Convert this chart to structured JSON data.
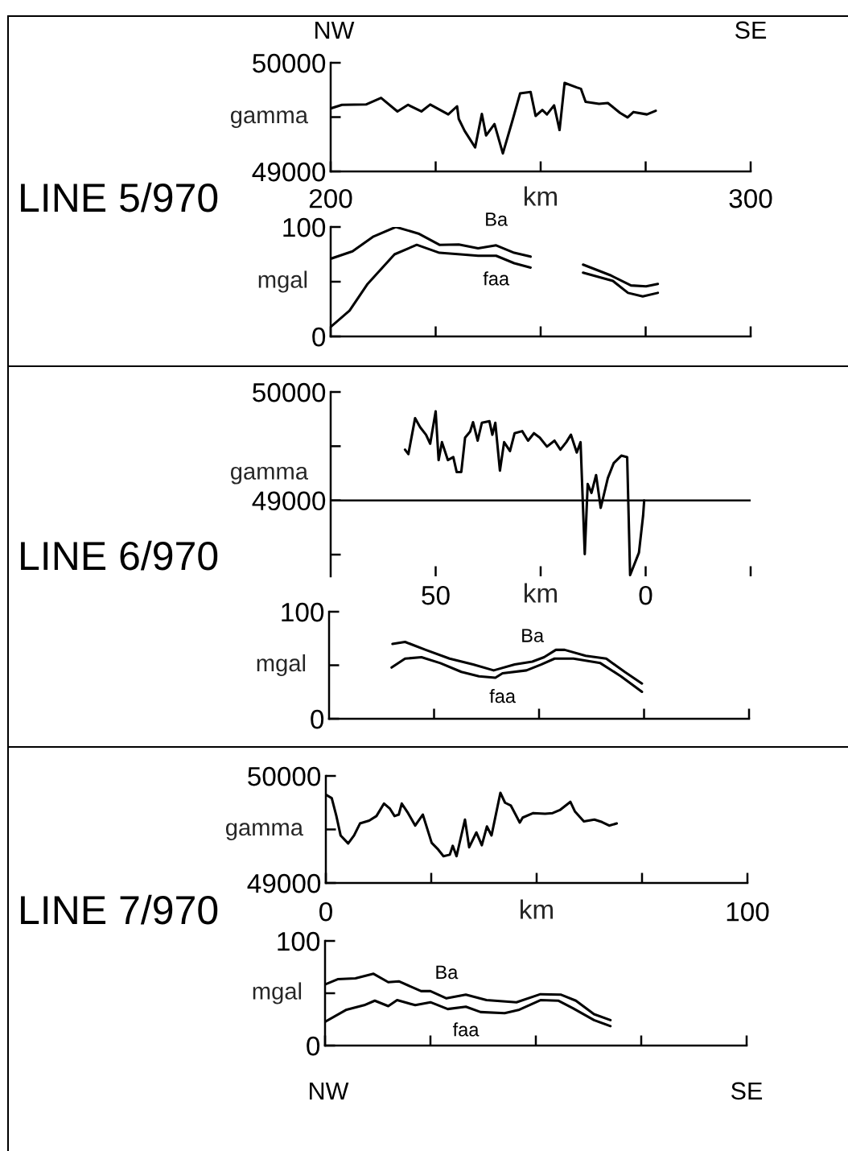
{
  "chart_data": [
    {
      "type": "line",
      "title": "LINE 5/970",
      "xlabel": "km",
      "ylabel": "gamma",
      "annotations": [
        "NW",
        "SE"
      ],
      "xlim": [
        200,
        300
      ],
      "xticks": [
        200,
        {
          "value": 225,
          "label": null
        },
        {
          "value": 250,
          "label": null
        },
        {
          "value": 275,
          "label": null
        },
        300
      ],
      "ylim": [
        49000,
        50000
      ],
      "yticks": [
        49000,
        {
          "value": 49500,
          "label": null
        },
        50000
      ],
      "grid": false,
      "legend": false,
      "series": [
        {
          "color": "#000000",
          "x": [
            200,
            202.7,
            208.4,
            212,
            215.9,
            218.4,
            221.6,
            223.7,
            228,
            230.1,
            230.5,
            231.9,
            234.4,
            236,
            237,
            239,
            241,
            243.3,
            245.1,
            247.6,
            248.8,
            250.4,
            251.5,
            253.2,
            254.5,
            255.7,
            258.6,
            259.6,
            260.7,
            263.9,
            266,
            268.9,
            270.7,
            272.1,
            275.3,
            277.4
          ],
          "values": [
            49580,
            49613,
            49616,
            49677,
            49552,
            49613,
            49552,
            49616,
            49525,
            49600,
            49483,
            49373,
            49221,
            49530,
            49331,
            49436,
            49166,
            49470,
            49718,
            49732,
            49511,
            49566,
            49525,
            49608,
            49381,
            49815,
            49773,
            49760,
            49641,
            49622,
            49630,
            49539,
            49497,
            49547,
            49525,
            49558
          ]
        }
      ]
    },
    {
      "type": "line",
      "ylabel": "mgal",
      "xlim": [
        200,
        300
      ],
      "xticks": [
        200,
        225,
        250,
        275,
        300
      ],
      "ylim": [
        0,
        100
      ],
      "yticks": [
        0,
        {
          "value": 50,
          "label": null
        },
        100
      ],
      "tick_labels": "y",
      "grid": false,
      "legend": false,
      "series": [
        {
          "name": "Ba",
          "color": "#000000",
          "x": [
            200,
            205.2,
            210.2,
            215.5,
            220.9,
            225.9,
            230.5,
            235.1,
            239.4,
            243.7,
            247.6,
            254,
            260.1,
            266.5,
            271.5,
            275.1,
            277.9
          ],
          "values": [
            71,
            77.8,
            91.3,
            100,
            94,
            83.7,
            84,
            80.5,
            83.2,
            76.4,
            72.9,
            null,
            65.6,
            56.1,
            46.6,
            45.8,
            48
          ]
        },
        {
          "name": "faa",
          "color": "#000000",
          "x": [
            200,
            204.5,
            208.8,
            215.2,
            220.5,
            225.9,
            230.9,
            235.1,
            239.4,
            243.7,
            247.6,
            254,
            260.1,
            267.2,
            270.8,
            274.3,
            277.9
          ],
          "values": [
            8.7,
            23.6,
            48,
            75,
            83.7,
            76.4,
            75,
            73.7,
            73.7,
            66.9,
            62.9,
            null,
            58.3,
            50.7,
            39.8,
            36.6,
            39.8
          ]
        }
      ]
    },
    {
      "type": "line",
      "title": "LINE 6/970",
      "xlabel": "km",
      "ylabel": "gamma",
      "xlim": [
        75,
        -25
      ],
      "xticks": [
        50,
        {
          "value": 25,
          "label": null
        },
        0,
        {
          "value": -25,
          "label": null
        }
      ],
      "ylim": [
        48300,
        50000
      ],
      "yticks": [
        {
          "value": 48500,
          "label": null
        },
        49000,
        {
          "value": 49500,
          "label": null
        },
        50000
      ],
      "ref_lines": [
        {
          "axis": "y",
          "value": 49000
        }
      ],
      "grid": false,
      "legend": false,
      "series": [
        {
          "color": "#000000",
          "x": [
            57.3,
            56.5,
            54.9,
            53.7,
            52.3,
            51.3,
            50,
            49.3,
            48.5,
            47.1,
            45.8,
            45,
            43.9,
            43,
            41.8,
            41.1,
            40,
            39,
            37.2,
            36.5,
            35.8,
            34.7,
            33.7,
            32.3,
            31.2,
            29.4,
            28,
            26.6,
            25.2,
            23.5,
            21.7,
            20.3,
            18.9,
            17.8,
            16.4,
            15.5,
            14.5,
            13.8,
            12.9,
            11.8,
            10.7,
            9,
            7.6,
            5.8,
            4.4,
            3.7,
            1.6,
            0.6,
            0.35
          ],
          "values": [
            49468,
            49427,
            49758,
            49675,
            49606,
            49523,
            49821,
            49372,
            49537,
            49372,
            49399,
            49262,
            49262,
            49578,
            49634,
            49722,
            49551,
            49716,
            49730,
            49606,
            49716,
            49275,
            49537,
            49455,
            49620,
            49639,
            49551,
            49620,
            49579,
            49496,
            49551,
            49468,
            49537,
            49606,
            49441,
            49537,
            48504,
            49152,
            49069,
            49234,
            48931,
            49207,
            49344,
            49413,
            49399,
            48311,
            48518,
            48862,
            49000
          ]
        }
      ]
    },
    {
      "type": "line",
      "ylabel": "mgal",
      "xlim": [
        75,
        -25
      ],
      "xticks": [
        50,
        25,
        0,
        -25
      ],
      "ylim": [
        0,
        100
      ],
      "yticks": [
        0,
        {
          "value": 50,
          "label": null
        },
        100
      ],
      "tick_labels": "y",
      "grid": false,
      "legend": false,
      "series": [
        {
          "name": "Ba",
          "color": "#000000",
          "x": [
            59.9,
            56.9,
            52,
            46.3,
            40.7,
            35.8,
            30.8,
            26.6,
            23.8,
            21,
            18.9,
            13.9,
            9,
            4.6,
            0.5
          ],
          "values": [
            69.9,
            71.8,
            64.4,
            56.2,
            50.7,
            45.2,
            50.7,
            53.4,
            57.5,
            64.4,
            64.4,
            58.9,
            56.2,
            43.8,
            32.9
          ]
        },
        {
          "name": "faa",
          "color": "#000000",
          "x": [
            60.1,
            56.9,
            53,
            48.5,
            43.5,
            39.3,
            35.4,
            33.7,
            28,
            24.5,
            21.3,
            16.8,
            10.4,
            5.5,
            0.5
          ],
          "values": [
            47.9,
            56.2,
            57.5,
            52,
            43.8,
            39.7,
            38.4,
            42.5,
            45.2,
            50.7,
            56.2,
            56.2,
            52,
            39.7,
            25.2
          ]
        }
      ]
    },
    {
      "type": "line",
      "title": "LINE 7/970",
      "xlabel": "km",
      "ylabel": "gamma",
      "xlim": [
        0,
        100
      ],
      "xticks": [
        0,
        {
          "value": 25,
          "label": null
        },
        {
          "value": 50,
          "label": null
        },
        {
          "value": 75,
          "label": null
        },
        100
      ],
      "ylim": [
        49000,
        50000
      ],
      "yticks": [
        49000,
        {
          "value": 49500,
          "label": null
        },
        50000
      ],
      "grid": false,
      "legend": false,
      "series": [
        {
          "color": "#000000",
          "x": [
            0,
            1.4,
            2.5,
            3.5,
            5.3,
            6.7,
            8.1,
            10.3,
            12,
            13.8,
            15.2,
            16.3,
            17.3,
            18,
            19.5,
            21.2,
            23,
            25.1,
            26.5,
            27.9,
            29.4,
            30.1,
            31,
            33,
            34,
            35.7,
            37,
            38.2,
            39.3,
            41.4,
            42.5,
            43.9,
            46,
            46.7,
            49.2,
            52,
            53.8,
            55.5,
            58,
            59.1,
            61.2,
            63.7,
            65.5,
            67.2,
            69
          ],
          "values": [
            49825,
            49792,
            49625,
            49444,
            49369,
            49444,
            49556,
            49583,
            49625,
            49742,
            49694,
            49625,
            49639,
            49742,
            49653,
            49536,
            49639,
            49375,
            49319,
            49250,
            49264,
            49347,
            49250,
            49592,
            49333,
            49472,
            49353,
            49528,
            49444,
            49842,
            49750,
            49722,
            49564,
            49611,
            49653,
            49647,
            49653,
            49681,
            49758,
            49667,
            49575,
            49592,
            49569,
            49536,
            49556
          ]
        }
      ]
    },
    {
      "type": "line",
      "ylabel": "mgal",
      "annotations": [
        "NW",
        "SE"
      ],
      "xlim": [
        0,
        100
      ],
      "xticks": [
        0,
        25,
        50,
        75,
        100
      ],
      "ylim": [
        0,
        100
      ],
      "yticks": [
        0,
        {
          "value": 50,
          "label": null
        },
        100
      ],
      "tick_labels": "y",
      "grid": false,
      "legend": false,
      "series": [
        {
          "name": "Ba",
          "color": "#000000",
          "x": [
            0.1,
            3,
            7.2,
            11.5,
            15,
            17.5,
            22.8,
            25,
            28.8,
            33.4,
            38.3,
            45.4,
            51.1,
            56,
            59.5,
            63.8,
            67.7
          ],
          "values": [
            58.6,
            63.4,
            64.3,
            68.6,
            60.6,
            61.4,
            52,
            52,
            45.1,
            48.6,
            43.4,
            41.4,
            49.1,
            48.6,
            42.9,
            30,
            24.3
          ]
        },
        {
          "name": "faa",
          "color": "#000000",
          "x": [
            0.1,
            5.1,
            9.3,
            11.8,
            15,
            17.1,
            21.4,
            25,
            29.1,
            33.4,
            36.9,
            42.6,
            46.1,
            51.1,
            55.3,
            58.8,
            63.8,
            67.7
          ],
          "values": [
            22.9,
            34.3,
            38.6,
            42.9,
            37.7,
            43.4,
            38.6,
            41.4,
            34.9,
            37.1,
            32,
            30.9,
            34.3,
            43.4,
            42.9,
            35.7,
            24.3,
            18.6
          ]
        }
      ]
    }
  ]
}
